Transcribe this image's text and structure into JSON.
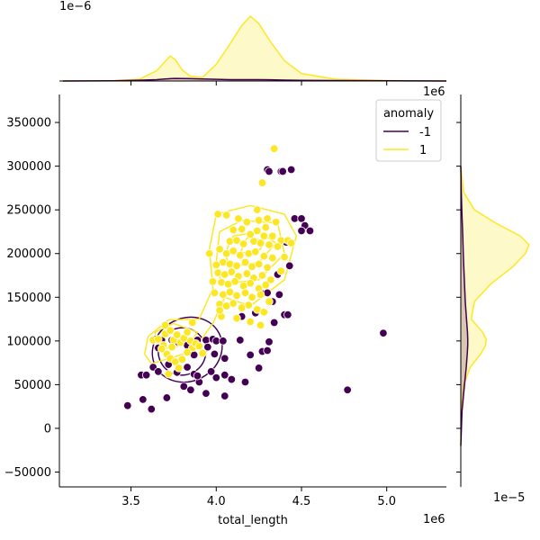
{
  "chart_data": {
    "type": "scatter",
    "subtype": "jointplot-with-kde",
    "xlabel": "total_length",
    "ylabel": "",
    "x_offset_label": "1e6",
    "y_offset_label": "1e6",
    "top_marginal_offset_label": "1e−6",
    "right_marginal_offset_label": "1e−5",
    "xlim": [
      3.08,
      5.35
    ],
    "ylim": [
      -67000,
      382000
    ],
    "x_ticks": [
      3.5,
      4.0,
      4.5,
      5.0
    ],
    "x_tick_labels": [
      "3.5",
      "4.0",
      "4.5",
      "5.0"
    ],
    "y_ticks": [
      -50000,
      0,
      50000,
      100000,
      150000,
      200000,
      250000,
      300000,
      350000
    ],
    "y_tick_labels": [
      "−50000",
      "0",
      "50000",
      "100000",
      "150000",
      "200000",
      "250000",
      "300000",
      "350000"
    ],
    "legend": {
      "title": "anomaly",
      "placement": "top-right",
      "entries": [
        {
          "label": "-1",
          "color": "#440154"
        },
        {
          "label": "1",
          "color": "#fde725"
        }
      ]
    },
    "colors": {
      "anomaly": "#440154",
      "normal": "#fde725"
    },
    "series": [
      {
        "name": "-1",
        "color": "#440154",
        "points": [
          [
            3.48,
            26000
          ],
          [
            3.57,
            33000
          ],
          [
            3.62,
            22000
          ],
          [
            3.71,
            35000
          ],
          [
            3.56,
            61000
          ],
          [
            3.59,
            61000
          ],
          [
            3.63,
            70000
          ],
          [
            3.66,
            65000
          ],
          [
            3.72,
            73000
          ],
          [
            3.77,
            64000
          ],
          [
            3.81,
            48000
          ],
          [
            3.85,
            44000
          ],
          [
            3.9,
            53000
          ],
          [
            3.94,
            40000
          ],
          [
            4.05,
            37000
          ],
          [
            3.87,
            62000
          ],
          [
            3.89,
            60000
          ],
          [
            3.97,
            65000
          ],
          [
            4.0,
            58000
          ],
          [
            4.05,
            61000
          ],
          [
            3.83,
            70000
          ],
          [
            4.09,
            56000
          ],
          [
            4.17,
            53000
          ],
          [
            4.25,
            69000
          ],
          [
            4.2,
            84000
          ],
          [
            3.64,
            102000
          ],
          [
            3.68,
            101000
          ],
          [
            3.66,
            92000
          ],
          [
            3.74,
            101000
          ],
          [
            3.78,
            98000
          ],
          [
            3.83,
            95000
          ],
          [
            3.89,
            101000
          ],
          [
            3.94,
            101000
          ],
          [
            3.98,
            102000
          ],
          [
            4.0,
            100000
          ],
          [
            4.04,
            100000
          ],
          [
            3.95,
            93000
          ],
          [
            3.99,
            85000
          ],
          [
            4.05,
            80000
          ],
          [
            3.87,
            84000
          ],
          [
            4.14,
            101000
          ],
          [
            4.15,
            128000
          ],
          [
            4.23,
            132000
          ],
          [
            4.27,
            88000
          ],
          [
            4.3,
            89000
          ],
          [
            4.31,
            99000
          ],
          [
            4.34,
            121000
          ],
          [
            4.4,
            130000
          ],
          [
            4.42,
            130000
          ],
          [
            4.27,
            154000
          ],
          [
            4.3,
            155000
          ],
          [
            4.33,
            145000
          ],
          [
            4.37,
            153000
          ],
          [
            4.43,
            186000
          ],
          [
            4.36,
            176000
          ],
          [
            4.41,
            213000
          ],
          [
            4.46,
            240000
          ],
          [
            4.5,
            240000
          ],
          [
            4.52,
            232000
          ],
          [
            4.5,
            226000
          ],
          [
            4.55,
            226000
          ],
          [
            4.3,
            296000
          ],
          [
            4.31,
            294000
          ],
          [
            4.38,
            294000
          ],
          [
            4.39,
            294000
          ],
          [
            4.44,
            296000
          ],
          [
            4.77,
            44000
          ],
          [
            4.98,
            109000
          ]
        ]
      },
      {
        "name": "1",
        "color": "#fde725",
        "points": [
          [
            3.63,
            101000
          ],
          [
            3.66,
            102000
          ],
          [
            3.69,
            95000
          ],
          [
            3.7,
            108000
          ],
          [
            3.73,
            112000
          ],
          [
            3.75,
            101000
          ],
          [
            3.77,
            107000
          ],
          [
            3.79,
            98000
          ],
          [
            3.81,
            103000
          ],
          [
            3.83,
            110000
          ],
          [
            3.85,
            100000
          ],
          [
            3.86,
            92000
          ],
          [
            3.88,
            97000
          ],
          [
            3.71,
            85000
          ],
          [
            3.73,
            80000
          ],
          [
            3.76,
            76000
          ],
          [
            3.74,
            93000
          ],
          [
            3.68,
            91000
          ],
          [
            3.9,
            94000
          ],
          [
            3.92,
            86000
          ],
          [
            3.72,
            62000
          ],
          [
            3.78,
            69000
          ],
          [
            3.8,
            79000
          ],
          [
            3.83,
            87000
          ],
          [
            3.7,
            118000
          ],
          [
            3.86,
            121000
          ],
          [
            4.01,
            245000
          ],
          [
            4.06,
            244000
          ],
          [
            4.27,
            281000
          ],
          [
            4.34,
            320000
          ],
          [
            4.13,
            240000
          ],
          [
            4.18,
            236000
          ],
          [
            4.25,
            238000
          ],
          [
            4.3,
            240000
          ],
          [
            4.35,
            236000
          ],
          [
            4.1,
            227000
          ],
          [
            4.15,
            228000
          ],
          [
            4.2,
            222000
          ],
          [
            4.24,
            226000
          ],
          [
            4.28,
            220000
          ],
          [
            4.33,
            220000
          ],
          [
            4.38,
            215000
          ],
          [
            4.42,
            215000
          ],
          [
            4.44,
            212000
          ],
          [
            4.08,
            214000
          ],
          [
            4.12,
            215000
          ],
          [
            4.16,
            211000
          ],
          [
            4.22,
            214000
          ],
          [
            4.26,
            212000
          ],
          [
            4.31,
            210000
          ],
          [
            4.36,
            208000
          ],
          [
            4.02,
            205000
          ],
          [
            4.06,
            200000
          ],
          [
            4.1,
            203000
          ],
          [
            4.14,
            198000
          ],
          [
            4.19,
            200000
          ],
          [
            4.23,
            202000
          ],
          [
            4.28,
            197000
          ],
          [
            4.33,
            195000
          ],
          [
            4.04,
            190000
          ],
          [
            4.08,
            188000
          ],
          [
            4.12,
            186000
          ],
          [
            4.17,
            190000
          ],
          [
            4.21,
            185000
          ],
          [
            4.25,
            188000
          ],
          [
            4.3,
            184000
          ],
          [
            4.01,
            178000
          ],
          [
            4.05,
            176000
          ],
          [
            4.09,
            179000
          ],
          [
            4.13,
            174000
          ],
          [
            4.18,
            177000
          ],
          [
            4.22,
            172000
          ],
          [
            4.27,
            175000
          ],
          [
            4.32,
            170000
          ],
          [
            3.98,
            168000
          ],
          [
            4.03,
            167000
          ],
          [
            4.07,
            165000
          ],
          [
            4.11,
            168000
          ],
          [
            4.16,
            163000
          ],
          [
            4.2,
            166000
          ],
          [
            4.25,
            160000
          ],
          [
            4.29,
            164000
          ],
          [
            3.99,
            155000
          ],
          [
            4.04,
            153000
          ],
          [
            4.08,
            156000
          ],
          [
            4.12,
            152000
          ],
          [
            4.17,
            155000
          ],
          [
            4.21,
            150000
          ],
          [
            4.26,
            153000
          ],
          [
            4.31,
            145000
          ],
          [
            4.02,
            142000
          ],
          [
            4.06,
            140000
          ],
          [
            4.1,
            143000
          ],
          [
            4.15,
            138000
          ],
          [
            4.19,
            141000
          ],
          [
            4.24,
            136000
          ],
          [
            4.28,
            133000
          ],
          [
            4.03,
            128000
          ],
          [
            4.12,
            126000
          ],
          [
            4.2,
            122000
          ],
          [
            4.26,
            118000
          ],
          [
            4.02,
            135000
          ],
          [
            4.4,
            196000
          ],
          [
            4.38,
            180000
          ],
          [
            4.0,
            187000
          ],
          [
            3.96,
            200000
          ],
          [
            4.24,
            250000
          ],
          [
            4.29,
            230000
          ]
        ]
      }
    ],
    "kde_contours": {
      "-1": [
        {
          "cx": 3.8,
          "cy": 88000,
          "rx": 0.14,
          "ry": 27000
        },
        {
          "cx": 3.83,
          "cy": 90000,
          "rx": 0.21,
          "ry": 36000
        }
      ],
      "1": [
        {
          "type": "path",
          "points": [
            [
              3.62,
              74000
            ],
            [
              3.86,
              88000
            ],
            [
              3.98,
              120000
            ],
            [
              4.05,
              150000
            ],
            [
              4.2,
              140000
            ],
            [
              4.4,
              170000
            ],
            [
              4.47,
              220000
            ],
            [
              4.4,
              245000
            ],
            [
              4.2,
              255000
            ],
            [
              4.0,
              245000
            ],
            [
              3.96,
              205000
            ],
            [
              3.98,
              160000
            ],
            [
              3.9,
              125000
            ],
            [
              3.72,
              124000
            ],
            [
              3.6,
              105000
            ],
            [
              3.58,
              85000
            ]
          ]
        },
        {
          "type": "path",
          "points": [
            [
              3.66,
              90000
            ],
            [
              3.84,
              96000
            ],
            [
              3.89,
              110000
            ],
            [
              3.75,
              120000
            ],
            [
              3.64,
              110000
            ]
          ]
        },
        {
          "type": "path",
          "points": [
            [
              4.03,
              165000
            ],
            [
              4.25,
              170000
            ],
            [
              4.4,
              200000
            ],
            [
              4.36,
              235000
            ],
            [
              4.15,
              238000
            ],
            [
              4.02,
              225000
            ],
            [
              4.0,
              190000
            ]
          ]
        },
        {
          "type": "path",
          "points": [
            [
              4.08,
              185000
            ],
            [
              4.25,
              190000
            ],
            [
              4.35,
              212000
            ],
            [
              4.25,
              225000
            ],
            [
              4.1,
              220000
            ],
            [
              4.05,
              200000
            ]
          ]
        },
        {
          "type": "path",
          "points": [
            [
              4.14,
              200000
            ],
            [
              4.26,
              205000
            ],
            [
              4.28,
              215000
            ],
            [
              4.18,
              218000
            ]
          ]
        }
      ]
    },
    "top_marginal": {
      "x": [
        3.1,
        3.4,
        3.55,
        3.65,
        3.7,
        3.73,
        3.76,
        3.8,
        3.85,
        3.92,
        4.0,
        4.08,
        4.15,
        4.2,
        4.25,
        4.32,
        4.4,
        4.5,
        4.7,
        5.0,
        5.35
      ],
      "density_1": [
        0,
        0.05,
        0.2,
        1.1,
        2.1,
        2.7,
        2.3,
        1.2,
        0.5,
        0.4,
        1.8,
        4.0,
        6.0,
        7.0,
        6.2,
        4.2,
        2.2,
        0.8,
        0.2,
        0.05,
        0
      ],
      "density_neg1": [
        0,
        0.02,
        0.08,
        0.15,
        0.22,
        0.26,
        0.28,
        0.27,
        0.25,
        0.22,
        0.18,
        0.15,
        0.14,
        0.15,
        0.15,
        0.13,
        0.1,
        0.07,
        0.05,
        0.02,
        0
      ]
    },
    "right_marginal": {
      "y": [
        -20000,
        20000,
        50000,
        70000,
        85000,
        95000,
        102000,
        110000,
        125000,
        145000,
        165000,
        185000,
        200000,
        210000,
        220000,
        235000,
        250000,
        270000,
        300000
      ],
      "density_1": [
        0,
        0.02,
        0.12,
        0.38,
        0.8,
        1.0,
        1.02,
        0.88,
        0.42,
        0.55,
        1.2,
        2.1,
        2.6,
        2.75,
        2.4,
        1.4,
        0.55,
        0.12,
        0
      ],
      "density_neg1": [
        0,
        0.05,
        0.15,
        0.22,
        0.26,
        0.28,
        0.28,
        0.27,
        0.23,
        0.18,
        0.15,
        0.12,
        0.1,
        0.09,
        0.08,
        0.06,
        0.04,
        0.02,
        0
      ]
    }
  }
}
